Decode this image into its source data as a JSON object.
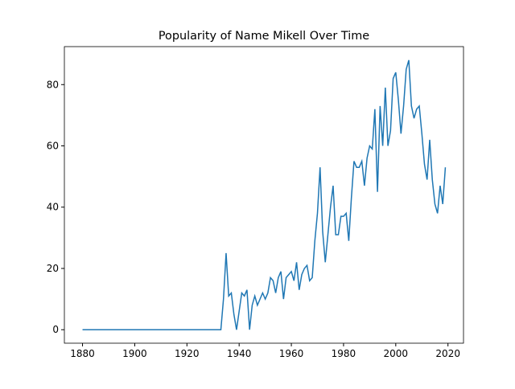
{
  "chart_data": {
    "type": "line",
    "title": "Popularity of Name Mikell Over Time",
    "x": [
      1880,
      1881,
      1882,
      1883,
      1884,
      1885,
      1886,
      1887,
      1888,
      1889,
      1890,
      1891,
      1892,
      1893,
      1894,
      1895,
      1896,
      1897,
      1898,
      1899,
      1900,
      1901,
      1902,
      1903,
      1904,
      1905,
      1906,
      1907,
      1908,
      1909,
      1910,
      1911,
      1912,
      1913,
      1914,
      1915,
      1916,
      1917,
      1918,
      1919,
      1920,
      1921,
      1922,
      1923,
      1924,
      1925,
      1926,
      1927,
      1928,
      1929,
      1930,
      1931,
      1932,
      1933,
      1934,
      1935,
      1936,
      1937,
      1938,
      1939,
      1940,
      1941,
      1942,
      1943,
      1944,
      1945,
      1946,
      1947,
      1948,
      1949,
      1950,
      1951,
      1952,
      1953,
      1954,
      1955,
      1956,
      1957,
      1958,
      1959,
      1960,
      1961,
      1962,
      1963,
      1964,
      1965,
      1966,
      1967,
      1968,
      1969,
      1970,
      1971,
      1972,
      1973,
      1974,
      1975,
      1976,
      1977,
      1978,
      1979,
      1980,
      1981,
      1982,
      1983,
      1984,
      1985,
      1986,
      1987,
      1988,
      1989,
      1990,
      1991,
      1992,
      1993,
      1994,
      1995,
      1996,
      1997,
      1998,
      1999,
      2000,
      2001,
      2002,
      2003,
      2004,
      2005,
      2006,
      2007,
      2008,
      2009,
      2010,
      2011,
      2012,
      2013,
      2014,
      2015,
      2016,
      2017,
      2018,
      2019
    ],
    "series": [
      {
        "color": "#1f77b4",
        "values": [
          0,
          0,
          0,
          0,
          0,
          0,
          0,
          0,
          0,
          0,
          0,
          0,
          0,
          0,
          0,
          0,
          0,
          0,
          0,
          0,
          0,
          0,
          0,
          0,
          0,
          0,
          0,
          0,
          0,
          0,
          0,
          0,
          0,
          0,
          0,
          0,
          0,
          0,
          0,
          0,
          0,
          0,
          0,
          0,
          0,
          0,
          0,
          0,
          0,
          0,
          0,
          0,
          0,
          0,
          10,
          25,
          11,
          12,
          5,
          0,
          6,
          12,
          11,
          13,
          0,
          8,
          11,
          8,
          10,
          12,
          10,
          12,
          17,
          16,
          12,
          17,
          19,
          10,
          17,
          18,
          19,
          16,
          22,
          13,
          18,
          20,
          21,
          16,
          17,
          29,
          38,
          53,
          32,
          22,
          31,
          40,
          47,
          31,
          31,
          37,
          37,
          38,
          29,
          43,
          55,
          53,
          53,
          55,
          47,
          56,
          60,
          59,
          72,
          45,
          73,
          60,
          79,
          60,
          65,
          82,
          84,
          75,
          64,
          73,
          85,
          88,
          73,
          69,
          72,
          73,
          64,
          54,
          49,
          62,
          49,
          41,
          38,
          47,
          41,
          53
        ]
      }
    ],
    "xlim": [
      1873.05,
      2025.95
    ],
    "xticks": [
      1880,
      1900,
      1920,
      1940,
      1960,
      1980,
      2000,
      2020
    ],
    "ylim": [
      -4.4,
      92.4
    ],
    "yticks": [
      0,
      20,
      40,
      60,
      80
    ]
  }
}
